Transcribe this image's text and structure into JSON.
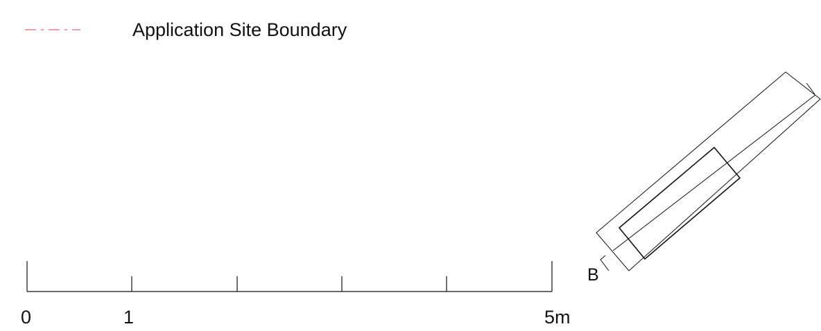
{
  "legend": {
    "items": [
      {
        "label": "Application Site Boundary",
        "line_style": "dash-dot",
        "color": "#f08080"
      }
    ]
  },
  "scale_bar": {
    "labels": {
      "start": "0",
      "first": "1",
      "end": "5m"
    },
    "divisions": 5
  },
  "plan": {
    "section_marker": "B",
    "line_color": "#111111"
  }
}
